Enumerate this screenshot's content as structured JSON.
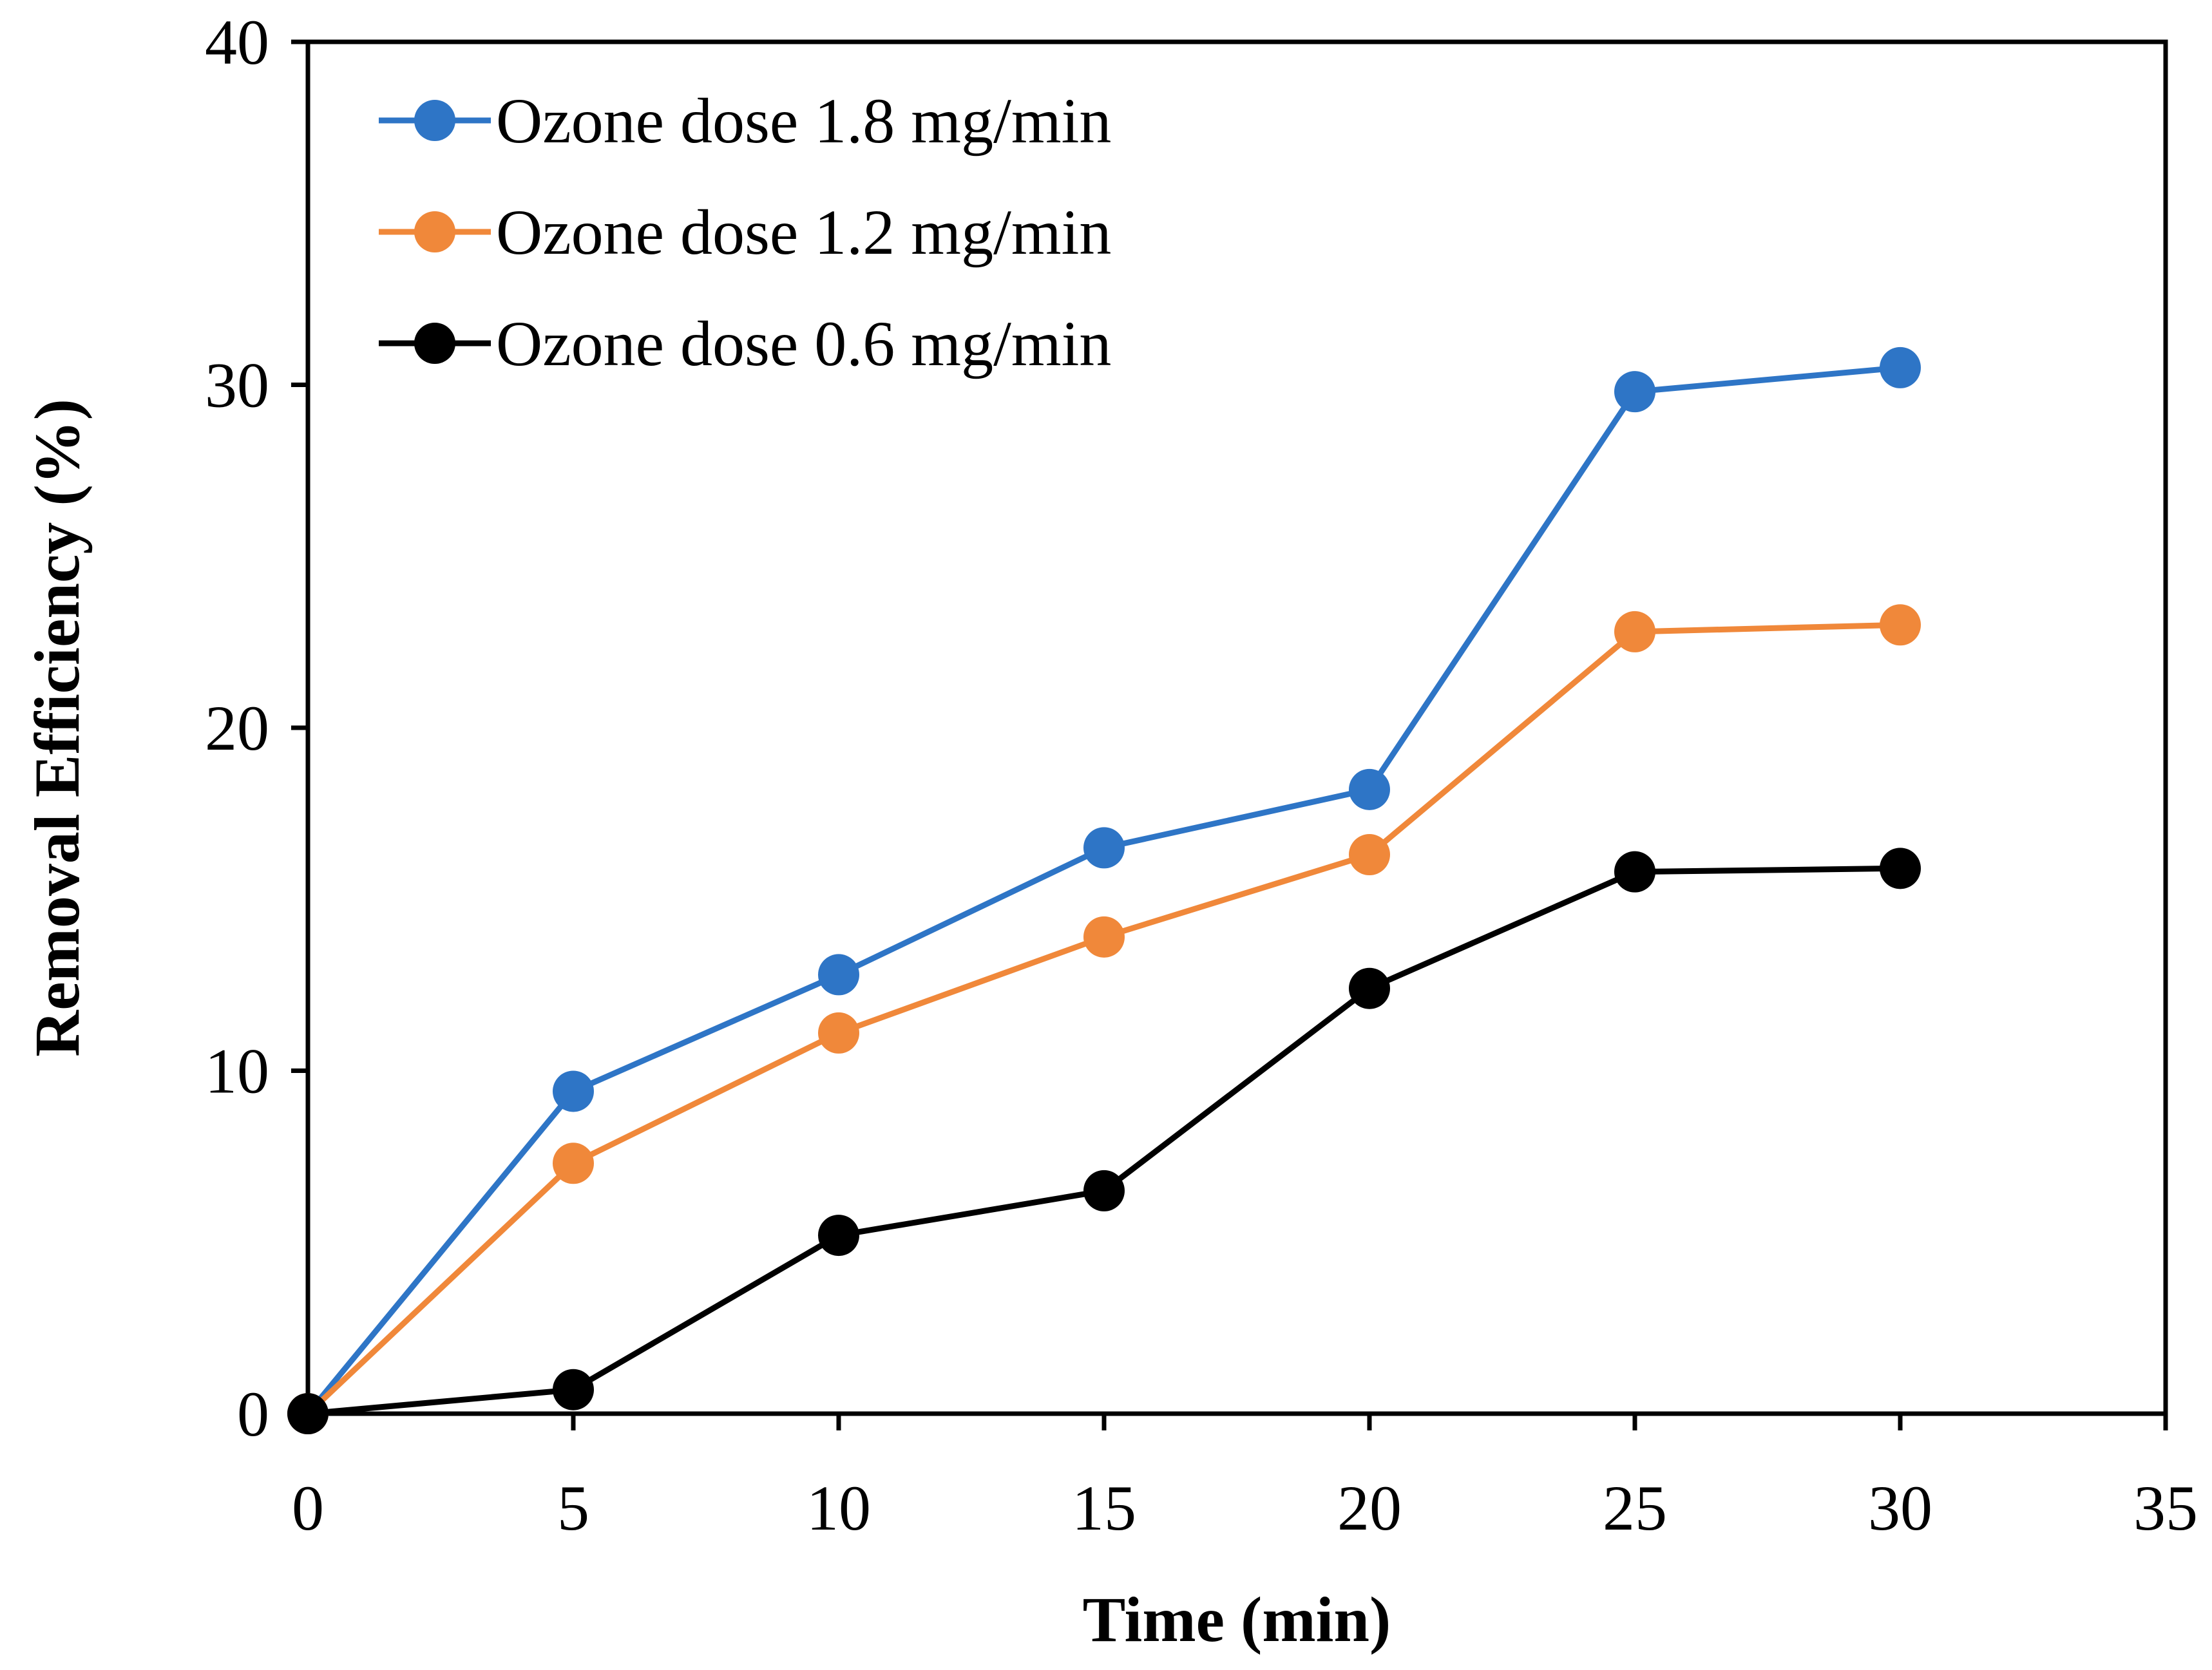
{
  "chart_data": {
    "type": "line",
    "xlabel": "Time (min)",
    "ylabel": "Removal Efficiency (%)",
    "xlim": [
      0,
      35
    ],
    "ylim": [
      0,
      40
    ],
    "xticks": [
      0,
      5,
      10,
      15,
      20,
      25,
      30,
      35
    ],
    "yticks": [
      0,
      10,
      20,
      30,
      40
    ],
    "grid": false,
    "legend_position": "top-left",
    "x": [
      0,
      5,
      10,
      15,
      20,
      25,
      30
    ],
    "series": [
      {
        "name": "Ozone dose 1.8 mg/min",
        "color": "#2E75C6",
        "values": [
          0,
          9.4,
          12.8,
          16.5,
          18.2,
          29.8,
          30.5
        ]
      },
      {
        "name": "Ozone dose 1.2 mg/min",
        "color": "#F0883A",
        "values": [
          0,
          7.3,
          11.1,
          13.9,
          16.3,
          22.8,
          23.0
        ]
      },
      {
        "name": "Ozone dose 0.6 mg/min",
        "color": "#000000",
        "values": [
          0,
          0.7,
          5.2,
          6.5,
          12.4,
          15.8,
          15.9
        ]
      }
    ]
  }
}
